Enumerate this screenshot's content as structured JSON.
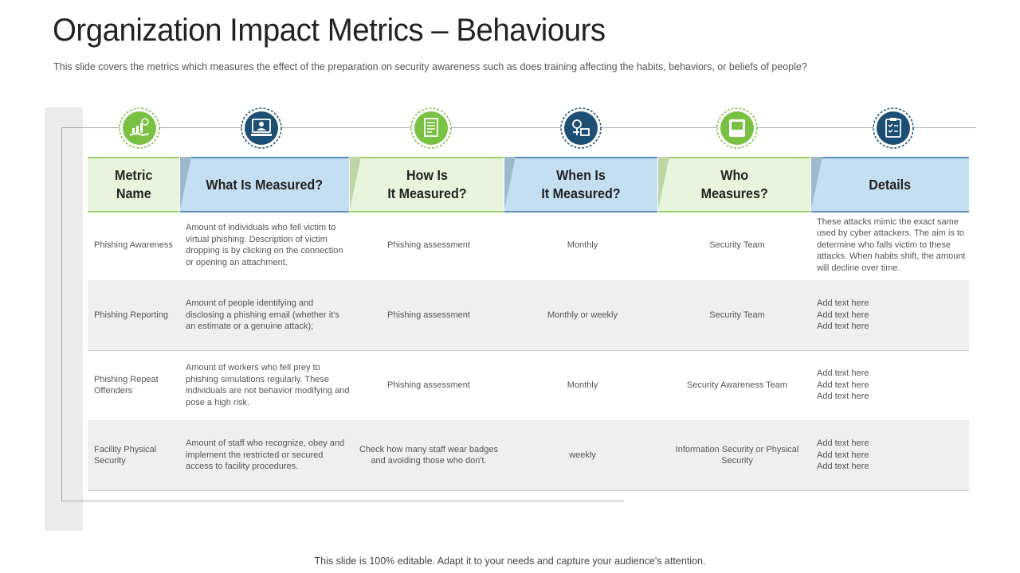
{
  "title": "Organization Impact Metrics – Behaviours",
  "subtitle": "This slide covers the metrics which measures the effect of the preparation on security awareness such as does training affecting the habits, behaviors, or beliefs of people?",
  "icons": [
    {
      "name": "money-hand-icon",
      "color": "#7ac143"
    },
    {
      "name": "computer-user-icon",
      "color": "#1d4e74"
    },
    {
      "name": "document-icon",
      "color": "#7ac143"
    },
    {
      "name": "process-chart-icon",
      "color": "#1d4e74"
    },
    {
      "name": "book-icon",
      "color": "#7ac143"
    },
    {
      "name": "clipboard-checklist-icon",
      "color": "#1d4e74"
    }
  ],
  "headers": [
    {
      "label": "Metric\nName",
      "color": "green"
    },
    {
      "label": "What Is Measured?",
      "color": "blue"
    },
    {
      "label": "How Is\nIt Measured?",
      "color": "green"
    },
    {
      "label": "When Is\nIt Measured?",
      "color": "blue"
    },
    {
      "label": "Who\nMeasures?",
      "color": "green"
    },
    {
      "label": "Details",
      "color": "blue"
    }
  ],
  "rows": [
    {
      "name": "Phishing Awareness",
      "what": "Amount of individuals  who fell victim  to virtual phishing. Description of victim dropping is by clicking on the connection or opening an attachment.",
      "how": "Phishing assessment",
      "when": "Monthly",
      "who": "Security Team",
      "details": "These attacks  mimic the exact same used by cyber attackers. The aim is to determine who falls victim  to these attacks.  When habits shift, the amount will decline over time."
    },
    {
      "name": "Phishing Reporting",
      "what": "Amount of people identifying  and disclosing  a phishing email  (whether it's an estimate or a genuine attack);",
      "how": "Phishing assessment",
      "when": "Monthly or weekly",
      "who": "Security Team",
      "details": "Add text here\nAdd text here\nAdd text here"
    },
    {
      "name": "Phishing Repeat Offenders",
      "what": "Amount of workers who fell prey to phishing simulations regularly.  These individuals  are not behavior modifying  and pose a high risk.",
      "how": "Phishing assessment",
      "when": "Monthly",
      "who": "Security Awareness Team",
      "details": "Add text here\nAdd text here\nAdd text here"
    },
    {
      "name": "Facility  Physical Security",
      "what": "Amount of staff who recognize, obey and implement  the restricted or secured access to facility  procedures.",
      "how": "Check how many staff wear badges and avoiding  those who don't.",
      "when": "weekly",
      "who": "Information Security or Physical Security",
      "details": "Add text here\nAdd text here\nAdd text here"
    }
  ],
  "footer": "This slide is 100% editable. Adapt it to your needs and capture your audience's attention."
}
